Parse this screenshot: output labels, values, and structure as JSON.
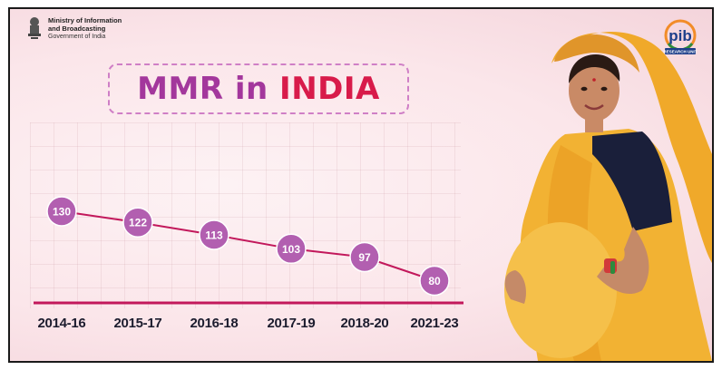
{
  "header": {
    "ministry_line1": "Ministry of Information",
    "ministry_line2": "and Broadcasting",
    "ministry_line3": "Government of India",
    "emblem_icon": "national-emblem-icon",
    "pib_logo": "pib-research-unit-logo",
    "pib_logo_text": "pib",
    "pib_logo_subtext": "RESEARCH UNIT"
  },
  "title": {
    "part1": "MMR in ",
    "part2": "INDIA"
  },
  "colors": {
    "title_purple": "#a3379c",
    "title_red": "#d81b4a",
    "marker_fill": "#b25fb0",
    "line": "#c2185b",
    "axis": "#c2185b",
    "saree": "#f2b233"
  },
  "chart_data": {
    "type": "line",
    "title": "MMR in INDIA",
    "categories": [
      "2014-16",
      "2015-17",
      "2016-18",
      "2017-19",
      "2018-20",
      "2021-23"
    ],
    "series": [
      {
        "values": [
          130,
          122,
          113,
          103,
          97,
          80
        ]
      }
    ],
    "data_labels": [
      "130",
      "122",
      "113",
      "103",
      "97",
      "80"
    ],
    "ylim": [
      0,
      150
    ],
    "grid": true,
    "legend": "none"
  }
}
